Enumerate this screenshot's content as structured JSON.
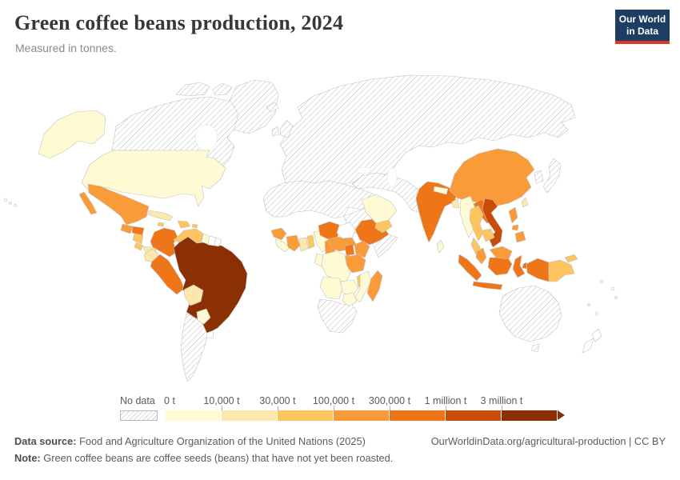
{
  "header": {
    "title": "Green coffee beans production, 2024",
    "subtitle": "Measured in tonnes.",
    "logo": {
      "line1": "Our World",
      "line2": "in Data",
      "bg": "#1d3d63",
      "accent": "#e0372b"
    }
  },
  "legend": {
    "no_data_label": "No data",
    "tick_labels": [
      "0 t",
      "10,000 t",
      "30,000 t",
      "100,000 t",
      "300,000 t",
      "1 million t",
      "3 million t"
    ],
    "colors": [
      "#FEFBD4",
      "#FCE7AC",
      "#FDC45F",
      "#FA9B39",
      "#EE7518",
      "#C94D06",
      "#8B3005"
    ]
  },
  "map": {
    "category_colors": {
      "no-data-plain": "#ffffff",
      "c1": "#FEFBD4",
      "c2": "#FCE7AC",
      "c3": "#FDC45F",
      "c4": "#FA9B39",
      "c5": "#EE7518",
      "c6": "#C94D06",
      "c7": "#8B3005"
    },
    "regions": {
      "greenland": "no-data",
      "canada": "no-data",
      "canada-arctic": "no-data",
      "eurasia": "no-data",
      "uk": "no-data",
      "ireland": "no-data",
      "iceland": "no-data",
      "middle-east": "no-data",
      "north-africa": "no-data",
      "sudan": "no-data",
      "somalia": "no-data",
      "southern-africa": "no-data",
      "argentina-chile": "no-data",
      "japan": "no-data",
      "korea": "no-data",
      "australia": "no-data",
      "tasmania": "no-data",
      "south-sudan": "no-data-plain",
      "suriname": "no-data-plain",
      "french-guiana": "no-data-plain",
      "uruguay": "no-data-plain",
      "new-zealand": "no-data-plain",
      "united-states": "c1",
      "hawaii": "c1",
      "guyana": "c1",
      "paraguay": "c1",
      "sierra-leone-liberia": "c1",
      "nigeria": "c1",
      "gabon-congo": "c1",
      "drc": "c1",
      "angola": "c1",
      "zambia": "c1",
      "zimbabwe": "c1",
      "mozambique": "c1",
      "saudi-arabia": "c1",
      "sri-lanka": "c1",
      "nepal": "c1",
      "myanmar": "c1",
      "pacific-islands": "c1",
      "ecuador": "c2",
      "ghana": "c2",
      "bolivia": "c2",
      "panama": "c2",
      "cuba": "c2",
      "taiwan": "c2",
      "bangladesh": "c2",
      "venezuela": "c3",
      "hispaniola": "c3",
      "jamaica": "c3",
      "puerto-rico": "c3",
      "nicaragua": "c3",
      "costa-rica": "c3",
      "yemen": "c3",
      "thailand": "c3",
      "cambodia": "c3",
      "papua-new-guinea": "c3",
      "malawi": "c3",
      "togo-benin": "c3",
      "mexico": "c4",
      "guatemala": "c4",
      "guinea": "c4",
      "ivory-coast": "c4",
      "cameroon": "c4",
      "central-african-republic": "c4",
      "kenya": "c4",
      "tanzania": "c4",
      "rwanda-burundi": "c4",
      "madagascar": "c4",
      "china": "c4",
      "philippines": "c4",
      "malaysia": "c4",
      "colombia": "c5",
      "peru": "c5",
      "honduras": "c5",
      "ethiopia": "c5",
      "uganda": "c5",
      "chad": "c5",
      "india": "c5",
      "laos": "c5",
      "indonesia": "c5",
      "vietnam": "c6",
      "brazil": "c7"
    }
  },
  "footer": {
    "source_label": "Data source:",
    "source_text": "Food and Agriculture Organization of the United Nations (2025)",
    "note_label": "Note:",
    "note_text": "Green coffee beans are coffee seeds (beans) that have not yet been roasted.",
    "link_text": "OurWorldinData.org/agricultural-production | CC BY"
  }
}
